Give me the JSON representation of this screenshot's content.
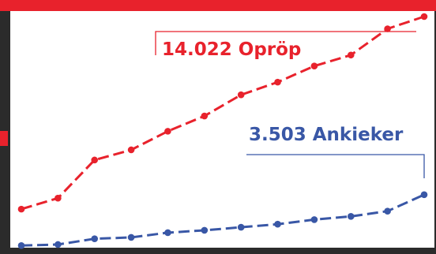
{
  "chart_data": {
    "type": "line",
    "x": [
      1,
      2,
      3,
      4,
      5,
      6,
      7,
      8,
      9,
      10,
      11,
      12
    ],
    "series": [
      {
        "name": "Opröp",
        "color": "#e8222c",
        "values": [
          2650,
          3300,
          5550,
          6150,
          7250,
          8150,
          9400,
          10150,
          11100,
          11750,
          13300,
          14022
        ]
      },
      {
        "name": "Ankieker",
        "color": "#3957a6",
        "values": [
          500,
          560,
          900,
          980,
          1260,
          1400,
          1580,
          1760,
          2030,
          2220,
          2530,
          3503
        ]
      }
    ],
    "ylim": [
      0,
      15000
    ],
    "grid": false
  },
  "callouts": {
    "red": "14.022 Opröp",
    "blue": "3.503 Ankieker"
  },
  "colors": {
    "frame": "#2b2b2b",
    "accent_red": "#e8222c",
    "accent_blue": "#3957a6",
    "panel": "#ffffff"
  }
}
